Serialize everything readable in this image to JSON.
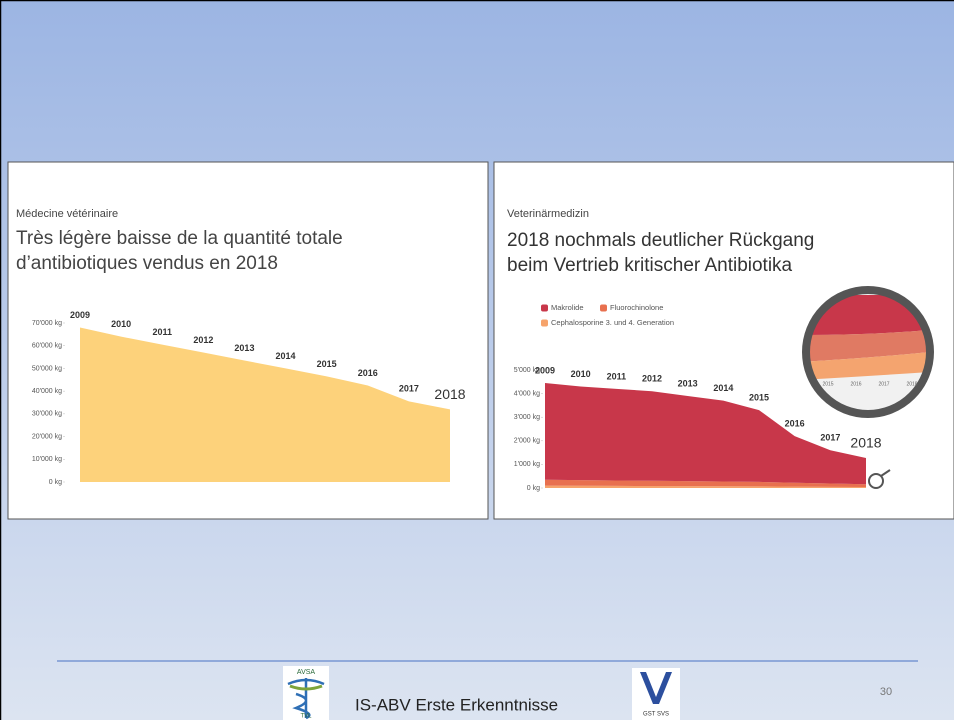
{
  "slide": {
    "footer_title": "IS-ABV Erste Erkenntnisse",
    "page_number": "30",
    "logo_left_top": "AVSA",
    "logo_left_bottom": "TVL",
    "logo_right": "GST SVS"
  },
  "panels": [
    {
      "subtitle": "Médecine vétérinaire",
      "title_lines": [
        "Très légère baisse de la quantité totale",
        "d’antibiotiques vendus en 2018"
      ],
      "chart_data": {
        "type": "area",
        "categories": [
          "2009",
          "2010",
          "2011",
          "2012",
          "2013",
          "2014",
          "2015",
          "2016",
          "2017",
          "2018"
        ],
        "values": [
          68000,
          64000,
          60500,
          57000,
          53500,
          50000,
          46500,
          42500,
          35500,
          32000
        ],
        "color": "#fdd27b",
        "ylim": [
          0,
          70000
        ],
        "yticks": [
          {
            "value": 0,
            "label": "0 kg"
          },
          {
            "value": 10000,
            "label": "10'000 kg"
          },
          {
            "value": 20000,
            "label": "20'000 kg"
          },
          {
            "value": 30000,
            "label": "30'000 kg"
          },
          {
            "value": 40000,
            "label": "40'000 kg"
          },
          {
            "value": 50000,
            "label": "50'000 kg"
          },
          {
            "value": 60000,
            "label": "60'000 kg"
          },
          {
            "value": 70000,
            "label": "70'000 kg"
          }
        ]
      }
    },
    {
      "subtitle": "Veterinärmedizin",
      "title_lines": [
        "2018 nochmals deutlicher Rückgang",
        "beim Vertrieb kritischer Antibiotika"
      ],
      "chart_data": {
        "type": "stacked-area",
        "categories": [
          "2009",
          "2010",
          "2011",
          "2012",
          "2013",
          "2014",
          "2015",
          "2016",
          "2017",
          "2018"
        ],
        "series": [
          {
            "name": "Cephalosporine 3. und 4. Generation",
            "color": "#f6a36b",
            "values": [
              100,
              95,
              90,
              85,
              80,
              75,
              70,
              60,
              50,
              40
            ]
          },
          {
            "name": "Fluorochinolone",
            "color": "#e8704f",
            "values": [
              250,
              240,
              230,
              220,
              210,
              200,
              190,
              160,
              140,
              120
            ]
          },
          {
            "name": "Makrolide",
            "color": "#c8374a",
            "values": [
              4100,
              3965,
              3880,
              3795,
              3610,
              3425,
              3040,
              1980,
              1410,
              1110
            ]
          }
        ],
        "ylim": [
          0,
          5000
        ],
        "yticks": [
          {
            "value": 0,
            "label": "0 kg"
          },
          {
            "value": 1000,
            "label": "1'000 kg"
          },
          {
            "value": 2000,
            "label": "2'000 kg"
          },
          {
            "value": 3000,
            "label": "3'000 kg"
          },
          {
            "value": 4000,
            "label": "4'000 kg"
          },
          {
            "value": 5000,
            "label": "5'000 kg"
          }
        ],
        "inset_years": [
          "2015",
          "2016",
          "2017",
          "2018"
        ]
      }
    }
  ]
}
